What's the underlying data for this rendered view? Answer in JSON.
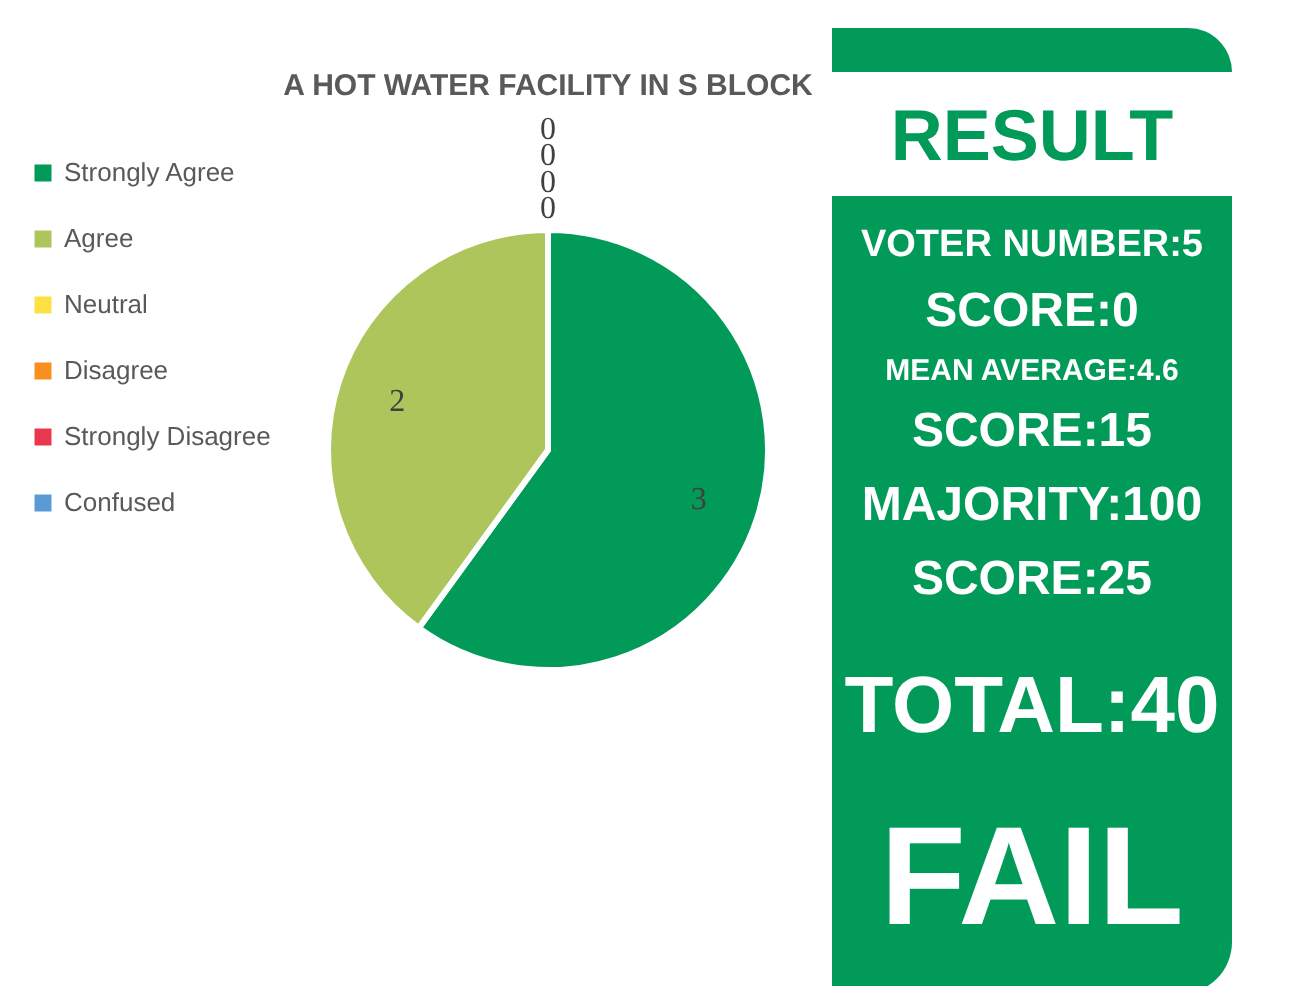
{
  "chart_data": [
    {
      "type": "pie",
      "title": "A HOT WATER FACILITY IN S BLOCK",
      "categories": [
        "Strongly Agree",
        "Agree",
        "Neutral",
        "Disagree",
        "Strongly Disagree",
        "Confused"
      ],
      "values": [
        3,
        2,
        0,
        0,
        0,
        0
      ],
      "colors": [
        "#019a59",
        "#aec55c",
        "#ffe043",
        "#f7901e",
        "#e8384f",
        "#5b9bd5"
      ],
      "value_labels": [
        "3",
        "2",
        "0",
        "0",
        "0",
        "0"
      ],
      "legend": "left"
    },
    {
      "type": "other",
      "title": "RESULT",
      "annotations": [
        "VOTER NUMBER:5",
        "SCORE:0",
        "MEAN AVERAGE:4.6",
        "SCORE:15",
        "MAJORITY:100",
        "SCORE:25",
        "TOTAL:40",
        "FAIL"
      ],
      "color": "#019a59"
    }
  ]
}
